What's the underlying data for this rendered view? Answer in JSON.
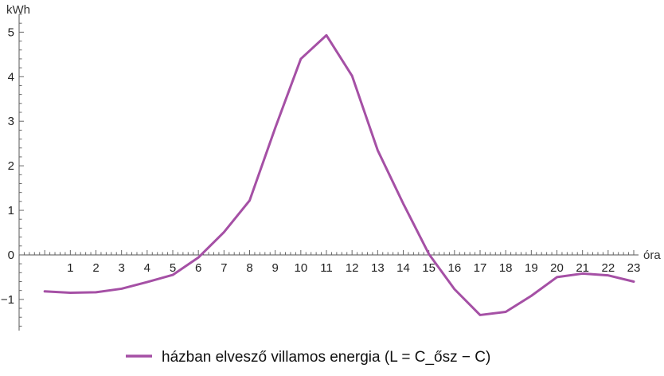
{
  "chart_data": {
    "type": "line",
    "title": "",
    "xlabel": "óra",
    "ylabel": "kWh",
    "xlim": [
      -1,
      23
    ],
    "ylim": [
      -1.7,
      5.4
    ],
    "x_ticks": [
      1,
      2,
      3,
      4,
      5,
      6,
      7,
      8,
      9,
      10,
      11,
      12,
      13,
      14,
      15,
      16,
      17,
      18,
      19,
      20,
      21,
      22,
      23
    ],
    "y_ticks": [
      -1,
      0,
      1,
      2,
      3,
      4,
      5
    ],
    "grid": false,
    "legend_position": "bottom-center",
    "series": [
      {
        "name": "házban elvesző villamos energia (L = C_ősz − C)",
        "color": "#a550a5",
        "x": [
          0,
          1,
          2,
          3,
          4,
          5,
          6,
          7,
          8,
          9,
          10,
          11,
          12,
          13,
          14,
          15,
          16,
          17,
          18,
          19,
          20,
          21,
          22,
          23
        ],
        "values": [
          -0.82,
          -0.85,
          -0.84,
          -0.76,
          -0.61,
          -0.45,
          -0.06,
          0.51,
          1.22,
          2.85,
          4.4,
          4.93,
          4.02,
          2.35,
          1.15,
          0.02,
          -0.77,
          -1.35,
          -1.28,
          -0.92,
          -0.5,
          -0.42,
          -0.46,
          -0.6
        ]
      }
    ]
  }
}
